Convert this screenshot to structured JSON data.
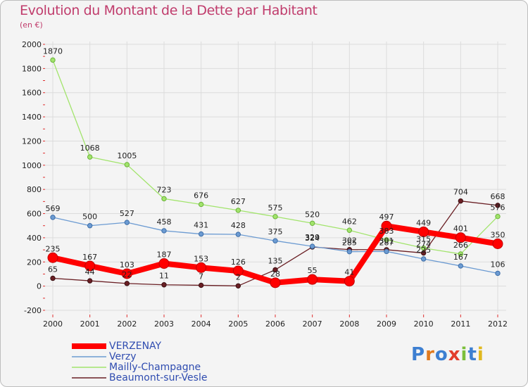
{
  "header": {
    "title": "Evolution du Montant de la Dette par Habitant",
    "subtitle": "(en €)"
  },
  "logo": {
    "text": "Proxiti"
  },
  "chart_data": {
    "type": "line",
    "title": "Evolution du Montant de la Dette par Habitant",
    "ylabel": "(en €)",
    "xlabel": "",
    "x": [
      "2000",
      "2001",
      "2002",
      "2003",
      "2004",
      "2005",
      "2006",
      "2007",
      "2008",
      "2009",
      "2010",
      "2011",
      "2012"
    ],
    "ylim": [
      -200,
      2000
    ],
    "yticks": [
      -200,
      0,
      200,
      400,
      600,
      800,
      1000,
      1200,
      1400,
      1600,
      1800,
      2000
    ],
    "grid": true,
    "legend_position": "bottom-left",
    "series": [
      {
        "name": "VERZENAY",
        "color": "#ff0000",
        "values": [
          235,
          167,
          103,
          187,
          153,
          126,
          28,
          55,
          41,
          497,
          449,
          401,
          350
        ]
      },
      {
        "name": "Verzy",
        "color": "#6c9bd2",
        "values": [
          569,
          500,
          527,
          458,
          431,
          428,
          375,
          329,
          285,
          287,
          225,
          167,
          106
        ]
      },
      {
        "name": "Mailly-Champagne",
        "color": "#a2e46c",
        "values": [
          1870,
          1068,
          1005,
          723,
          676,
          627,
          575,
          520,
          462,
          383,
          315,
          266,
          576
        ]
      },
      {
        "name": "Beaumont-sur-Vesle",
        "color": "#6a1f24",
        "values": [
          65,
          44,
          22,
          11,
          7,
          2,
          135,
          324,
          302,
          301,
          274,
          704,
          668
        ]
      }
    ]
  }
}
